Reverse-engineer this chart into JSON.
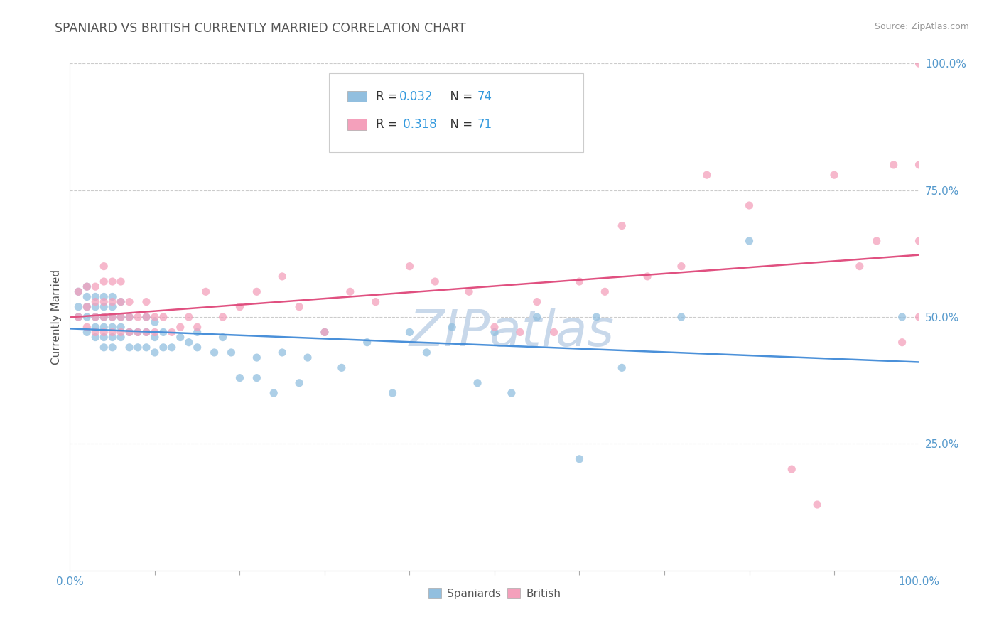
{
  "title": "SPANIARD VS BRITISH CURRENTLY MARRIED CORRELATION CHART",
  "source_text": "Source: ZipAtlas.com",
  "ylabel": "Currently Married",
  "xlim": [
    0,
    1
  ],
  "ylim": [
    0,
    1
  ],
  "spaniards_color": "#92bfdf",
  "british_color": "#f4a0bb",
  "trend_spaniards_color": "#4a90d9",
  "trend_british_color": "#e05080",
  "watermark_color": "#c8d8ea",
  "background_color": "#ffffff",
  "grid_color": "#cccccc",
  "title_color": "#555555",
  "axis_color": "#5599cc",
  "label_color": "#555555",
  "spaniards_x": [
    0.01,
    0.01,
    0.01,
    0.02,
    0.02,
    0.02,
    0.02,
    0.02,
    0.03,
    0.03,
    0.03,
    0.03,
    0.03,
    0.04,
    0.04,
    0.04,
    0.04,
    0.04,
    0.04,
    0.05,
    0.05,
    0.05,
    0.05,
    0.05,
    0.05,
    0.06,
    0.06,
    0.06,
    0.06,
    0.07,
    0.07,
    0.07,
    0.08,
    0.08,
    0.09,
    0.09,
    0.09,
    0.1,
    0.1,
    0.1,
    0.11,
    0.11,
    0.12,
    0.13,
    0.14,
    0.15,
    0.15,
    0.17,
    0.18,
    0.19,
    0.2,
    0.22,
    0.22,
    0.24,
    0.25,
    0.27,
    0.28,
    0.3,
    0.32,
    0.35,
    0.38,
    0.4,
    0.42,
    0.45,
    0.48,
    0.5,
    0.52,
    0.55,
    0.6,
    0.62,
    0.65,
    0.72,
    0.8,
    0.98
  ],
  "spaniards_y": [
    0.5,
    0.52,
    0.55,
    0.47,
    0.5,
    0.52,
    0.54,
    0.56,
    0.46,
    0.48,
    0.5,
    0.52,
    0.54,
    0.44,
    0.46,
    0.48,
    0.5,
    0.52,
    0.54,
    0.44,
    0.46,
    0.48,
    0.5,
    0.52,
    0.54,
    0.46,
    0.48,
    0.5,
    0.53,
    0.44,
    0.47,
    0.5,
    0.44,
    0.47,
    0.44,
    0.47,
    0.5,
    0.43,
    0.46,
    0.49,
    0.44,
    0.47,
    0.44,
    0.46,
    0.45,
    0.44,
    0.47,
    0.43,
    0.46,
    0.43,
    0.38,
    0.38,
    0.42,
    0.35,
    0.43,
    0.37,
    0.42,
    0.47,
    0.4,
    0.45,
    0.35,
    0.47,
    0.43,
    0.48,
    0.37,
    0.47,
    0.35,
    0.5,
    0.22,
    0.5,
    0.4,
    0.5,
    0.65,
    0.5
  ],
  "british_x": [
    0.01,
    0.01,
    0.02,
    0.02,
    0.02,
    0.03,
    0.03,
    0.03,
    0.03,
    0.04,
    0.04,
    0.04,
    0.04,
    0.04,
    0.05,
    0.05,
    0.05,
    0.05,
    0.06,
    0.06,
    0.06,
    0.06,
    0.07,
    0.07,
    0.07,
    0.08,
    0.08,
    0.09,
    0.09,
    0.09,
    0.1,
    0.1,
    0.11,
    0.12,
    0.13,
    0.14,
    0.15,
    0.16,
    0.18,
    0.2,
    0.22,
    0.25,
    0.27,
    0.3,
    0.33,
    0.36,
    0.4,
    0.43,
    0.47,
    0.5,
    0.53,
    0.55,
    0.57,
    0.6,
    0.63,
    0.65,
    0.68,
    0.72,
    0.75,
    0.8,
    0.85,
    0.88,
    0.9,
    0.93,
    0.95,
    0.97,
    0.98,
    1.0,
    1.0,
    1.0,
    1.0
  ],
  "british_y": [
    0.5,
    0.55,
    0.48,
    0.52,
    0.56,
    0.47,
    0.5,
    0.53,
    0.56,
    0.47,
    0.5,
    0.53,
    0.57,
    0.6,
    0.47,
    0.5,
    0.53,
    0.57,
    0.47,
    0.5,
    0.53,
    0.57,
    0.47,
    0.5,
    0.53,
    0.47,
    0.5,
    0.47,
    0.5,
    0.53,
    0.47,
    0.5,
    0.5,
    0.47,
    0.48,
    0.5,
    0.48,
    0.55,
    0.5,
    0.52,
    0.55,
    0.58,
    0.52,
    0.47,
    0.55,
    0.53,
    0.6,
    0.57,
    0.55,
    0.48,
    0.47,
    0.53,
    0.47,
    0.57,
    0.55,
    0.68,
    0.58,
    0.6,
    0.78,
    0.72,
    0.2,
    0.13,
    0.78,
    0.6,
    0.65,
    0.8,
    0.45,
    1.0,
    0.8,
    0.65,
    0.5
  ]
}
